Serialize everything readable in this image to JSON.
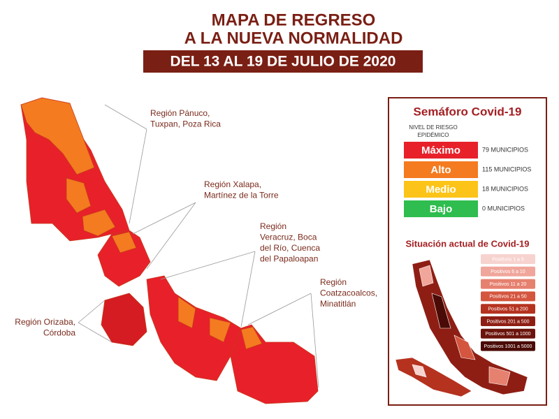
{
  "header": {
    "title_line1": "MAPA DE REGRESO",
    "title_line2": "A LA NUEVA NORMALIDAD",
    "date_banner": "DEL 13 AL 19 DE JULIO DE 2020"
  },
  "regions": [
    {
      "label_lines": [
        "Región Pánuco,",
        "Tuxpan, Poza Rica"
      ]
    },
    {
      "label_lines": [
        "Región Xalapa,",
        "Martínez de la Torre"
      ]
    },
    {
      "label_lines": [
        "Región",
        "Veracruz, Boca",
        "del Río, Cuenca",
        "del Papaloapan"
      ]
    },
    {
      "label_lines": [
        "Región",
        "Coatzacoalcos,",
        "Minatitlán"
      ]
    },
    {
      "label_lines": [
        "Región Orizaba,",
        "Córdoba"
      ]
    }
  ],
  "legend": {
    "title": "Semáforo Covid-19",
    "subtitle_lines": [
      "NIVEL DE RIESGO",
      "EPIDÉMICO"
    ],
    "levels": [
      {
        "label": "Máximo",
        "count": "79 MUNICIPIOS",
        "color": "#e8202a"
      },
      {
        "label": "Alto",
        "count": "115 MUNICIPIOS",
        "color": "#f47b20"
      },
      {
        "label": "Medio",
        "count": "18 MUNICIPIOS",
        "color": "#fcc419"
      },
      {
        "label": "Bajo",
        "count": "0 MUNICIPIOS",
        "color": "#2ebd4e"
      }
    ]
  },
  "situation": {
    "title": "Situación actual de Covid-19",
    "ranges": [
      {
        "label": "Positivos 1 a 5",
        "color": "#f7d3cf"
      },
      {
        "label": "Positivos 6 a 10",
        "color": "#f0a69b"
      },
      {
        "label": "Positivos 11 a 20",
        "color": "#e6806f"
      },
      {
        "label": "Positivos 21 a 50",
        "color": "#d4563f"
      },
      {
        "label": "Positivos 51 a 200",
        "color": "#b5321f"
      },
      {
        "label": "Positivos 201 a 500",
        "color": "#8e1e14"
      },
      {
        "label": "Positivos 501 a 1000",
        "color": "#6b130c"
      },
      {
        "label": "Positivos 1001 a 5000",
        "color": "#4a0b06"
      }
    ]
  }
}
